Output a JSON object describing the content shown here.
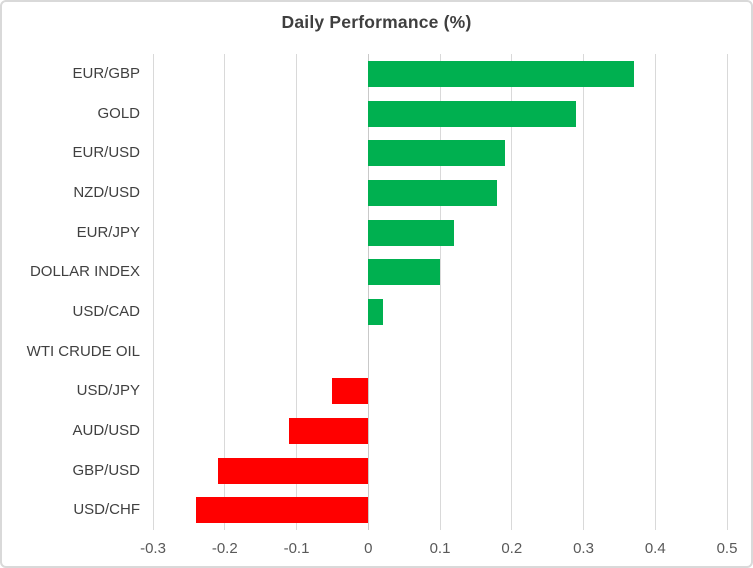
{
  "chart_data": {
    "type": "bar",
    "orientation": "horizontal",
    "title": "Daily Performance (%)",
    "categories": [
      "EUR/GBP",
      "GOLD",
      "EUR/USD",
      "NZD/USD",
      "EUR/JPY",
      "DOLLAR INDEX",
      "USD/CAD",
      "WTI CRUDE OIL",
      "USD/JPY",
      "AUD/USD",
      "GBP/USD",
      "USD/CHF"
    ],
    "values": [
      0.37,
      0.29,
      0.19,
      0.18,
      0.12,
      0.1,
      0.02,
      0.0,
      -0.05,
      -0.11,
      -0.21,
      -0.24
    ],
    "xlim": [
      -0.3,
      0.5
    ],
    "xticks": [
      -0.3,
      -0.2,
      -0.1,
      0,
      0.1,
      0.2,
      0.3,
      0.4,
      0.5
    ],
    "xtick_labels": [
      "-0.3",
      "-0.2",
      "-0.1",
      "0",
      "0.1",
      "0.2",
      "0.3",
      "0.4",
      "0.5"
    ],
    "xlabel": "",
    "ylabel": "",
    "grid": "vertical",
    "legend": "none",
    "colors": {
      "positive": "#00b050",
      "negative": "#ff0000",
      "gridline": "#d9d9d9",
      "zero_gridline": "#c9c9c9",
      "title": "#3f3f3f",
      "category_label": "#404040",
      "tick_label": "#595959",
      "frame_border": "#d9d9d9",
      "background": "#ffffff"
    }
  }
}
